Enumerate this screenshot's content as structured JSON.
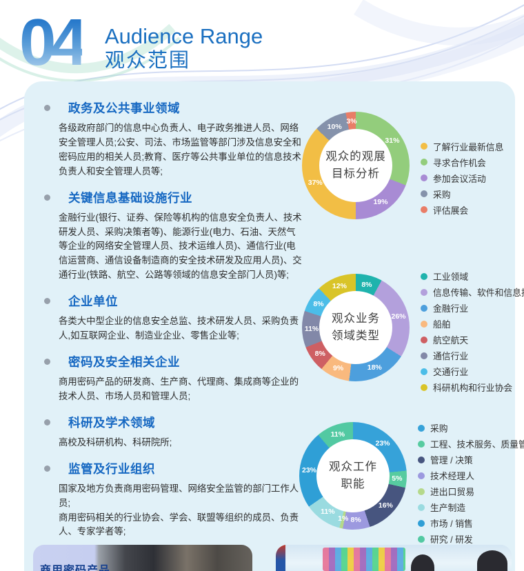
{
  "page": {
    "accent_color": "#1668c2",
    "panel_bg": "#e1f1f8"
  },
  "header": {
    "number": "04",
    "title_en": "Audience Range",
    "title_zh": "观众范围"
  },
  "sections": [
    {
      "title": "政务及公共事业领域",
      "paragraphs": [
        "各级政府部门的信息中心负责人、电子政务推进人员、网络安全管理人员;公安、司法、市场监管等部门涉及信息安全和密码应用的相关人员;教育、医疗等公共事业单位的信息技术负责人和安全管理人员等;"
      ]
    },
    {
      "title": "关键信息基础设施行业",
      "paragraphs": [
        "金融行业(银行、证券、保险等机构的信息安全负责人、技术研发人员、采购决策者等)、能源行业(电力、石油、天然气等企业的网络安全管理人员、技术运维人员)、通信行业(电信运营商、通信设备制造商的安全技术研发及应用人员)、交通行业(铁路、航空、公路等领域的信息安全部门人员)等;"
      ]
    },
    {
      "title": "企业单位",
      "paragraphs": [
        "各类大中型企业的信息安全总监、技术研发人员、采购负责人,如互联网企业、制造业企业、零售企业等;"
      ]
    },
    {
      "title": "密码及安全相关企业",
      "paragraphs": [
        "商用密码产品的研发商、生产商、代理商、集成商等企业的技术人员、市场人员和管理人员;"
      ]
    },
    {
      "title": "科研及学术领域",
      "paragraphs": [
        "高校及科研机构、科研院所;"
      ]
    },
    {
      "title": "监管及行业组织",
      "paragraphs": [
        "国家及地方负责商用密码管理、网络安全监管的部门工作人员;",
        "商用密码相关的行业协会、学会、联盟等组织的成员、负责人、专家学者等;"
      ]
    }
  ],
  "chart_data": [
    {
      "type": "pie",
      "donut": true,
      "legend_position": "right",
      "title": "观众的观展目标分析",
      "center_label": [
        "观众的观展",
        "目标分析"
      ],
      "segments": [
        {
          "label": "寻求合作机会",
          "value": 31,
          "color": "#93cd7c"
        },
        {
          "label": "参加会议活动",
          "value": 19,
          "color": "#a88bd4"
        },
        {
          "label": "了解行业最新信息",
          "value": 37,
          "color": "#f2be45"
        },
        {
          "label": "采购",
          "value": 10,
          "color": "#8592ab"
        },
        {
          "label": "评估展会",
          "value": 3,
          "color": "#e97d67"
        }
      ],
      "legend": [
        {
          "label": "了解行业最新信息",
          "color": "#f2be45"
        },
        {
          "label": "寻求合作机会",
          "color": "#93cd7c"
        },
        {
          "label": "参加会议活动",
          "color": "#a88bd4"
        },
        {
          "label": "采购",
          "color": "#8592ab"
        },
        {
          "label": "评估展会",
          "color": "#e97d67"
        }
      ]
    },
    {
      "type": "pie",
      "donut": true,
      "legend_position": "right",
      "title": "观众业务领域类型",
      "center_label": [
        "观众业务",
        "领域类型"
      ],
      "segments": [
        {
          "label": "工业领域",
          "value": 8,
          "color": "#1fb3ad"
        },
        {
          "label": "信息传输、软件和信息技术",
          "value": 26,
          "color": "#b3a0dc"
        },
        {
          "label": "金融行业",
          "value": 18,
          "color": "#4d9fdd"
        },
        {
          "label": "船舶",
          "value": 9,
          "color": "#f9b97e"
        },
        {
          "label": "航空航天",
          "value": 8,
          "color": "#ce5f63"
        },
        {
          "label": "通信行业",
          "value": 11,
          "color": "#8288a8"
        },
        {
          "label": "交通行业",
          "value": 8,
          "color": "#4bbde8"
        },
        {
          "label": "科研机构和行业协会",
          "value": 12,
          "color": "#d9c428"
        }
      ],
      "legend": [
        {
          "label": "工业领域",
          "color": "#1fb3ad"
        },
        {
          "label": "信息传输、软件和信息技术",
          "color": "#b3a0dc"
        },
        {
          "label": "金融行业",
          "color": "#4d9fdd"
        },
        {
          "label": "船舶",
          "color": "#f9b97e"
        },
        {
          "label": "航空航天",
          "color": "#ce5f63"
        },
        {
          "label": "通信行业",
          "color": "#8288a8"
        },
        {
          "label": "交通行业",
          "color": "#4bbde8"
        },
        {
          "label": "科研机构和行业协会",
          "color": "#d9c428"
        }
      ]
    },
    {
      "type": "pie",
      "donut": true,
      "legend_position": "right",
      "title": "观众工作职能",
      "center_label": [
        "观众工作",
        "职能"
      ],
      "segments": [
        {
          "label": "采购",
          "value": 23,
          "color": "#36a2d9"
        },
        {
          "label": "工程、技术服务、质量管理",
          "value": 5,
          "color": "#57cba0"
        },
        {
          "label": "管理 / 决策",
          "value": 16,
          "color": "#47557f"
        },
        {
          "label": "技术经理人",
          "value": 8,
          "color": "#9c99df"
        },
        {
          "label": "进出口贸易",
          "value": 1,
          "color": "#b5d98b"
        },
        {
          "label": "生产制造",
          "value": 11,
          "color": "#9adbe0"
        },
        {
          "label": "市场 / 销售",
          "value": 23,
          "color": "#2f9fd6"
        },
        {
          "label": "研究 / 研发",
          "value": 11,
          "color": "#52c9a2"
        }
      ],
      "legend": [
        {
          "label": "采购",
          "color": "#36a2d9"
        },
        {
          "label": "工程、技术服务、质量管理",
          "color": "#57cba0"
        },
        {
          "label": "管理 / 决策",
          "color": "#47557f"
        },
        {
          "label": "技术经理人",
          "color": "#9c99df"
        },
        {
          "label": "进出口贸易",
          "color": "#b5d98b"
        },
        {
          "label": "生产制造",
          "color": "#9adbe0"
        },
        {
          "label": "市场 / 销售",
          "color": "#2f9fd6"
        },
        {
          "label": "研究 / 研发",
          "color": "#52c9a2"
        }
      ]
    }
  ],
  "photos": [
    {
      "caption": "商用密码产品"
    },
    {
      "caption": ""
    }
  ]
}
